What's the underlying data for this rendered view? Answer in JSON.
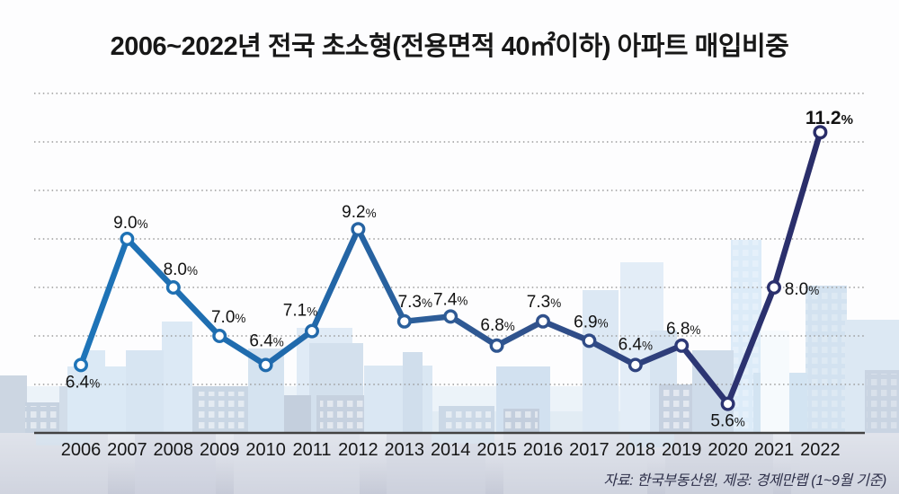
{
  "title": "2006~2022년 전국 초소형(전용면적 40㎡이하) 아파트 매입비중",
  "source": "자료: 한국부동산원, 제공: 경제만랩 (1~9월 기준)",
  "chart_data": {
    "type": "line",
    "categories": [
      "2006",
      "2007",
      "2008",
      "2009",
      "2010",
      "2011",
      "2012",
      "2013",
      "2014",
      "2015",
      "2016",
      "2017",
      "2018",
      "2019",
      "2020",
      "2021",
      "2022"
    ],
    "values": [
      6.4,
      9.0,
      8.0,
      7.0,
      6.4,
      7.1,
      9.2,
      7.3,
      7.4,
      6.8,
      7.3,
      6.9,
      6.4,
      6.8,
      5.6,
      8.0,
      11.2
    ],
    "value_labels": [
      "6.4",
      "9.0",
      "8.0",
      "7.0",
      "6.4",
      "7.1",
      "9.2",
      "7.3",
      "7.4",
      "6.8",
      "7.3",
      "6.9",
      "6.4",
      "6.8",
      "5.6",
      "8.0",
      "11.2"
    ],
    "unit": "%",
    "title": "2006~2022년 전국 초소형(전용면적 40㎡이하) 아파트 매입비중",
    "xlabel": "",
    "ylabel": "",
    "ylim": [
      5,
      12.5
    ],
    "yticks": [
      6,
      7,
      8,
      9,
      10,
      11,
      12
    ],
    "grid": "horizontal-dotted",
    "legend": "none",
    "marker": "white-circle",
    "highlight_last_point": true,
    "highlight_color": "#2b2d6a",
    "line_gradient": [
      "#1e74b8",
      "#2069ab",
      "#2f5b95",
      "#304a85",
      "#2c3472",
      "#2a2d69"
    ]
  },
  "colors": {
    "title": "#171717",
    "data_label": "#121212",
    "axis": "#424242",
    "grid": "#9c9c9c",
    "source_text": "#2c2e48",
    "skyline_light_blue": "#dbe9f5",
    "skyline_gray_blue": "#c7d2e0",
    "footer_band_top": "#e9ecf2",
    "footer_band_bottom": "#c6cad7"
  }
}
